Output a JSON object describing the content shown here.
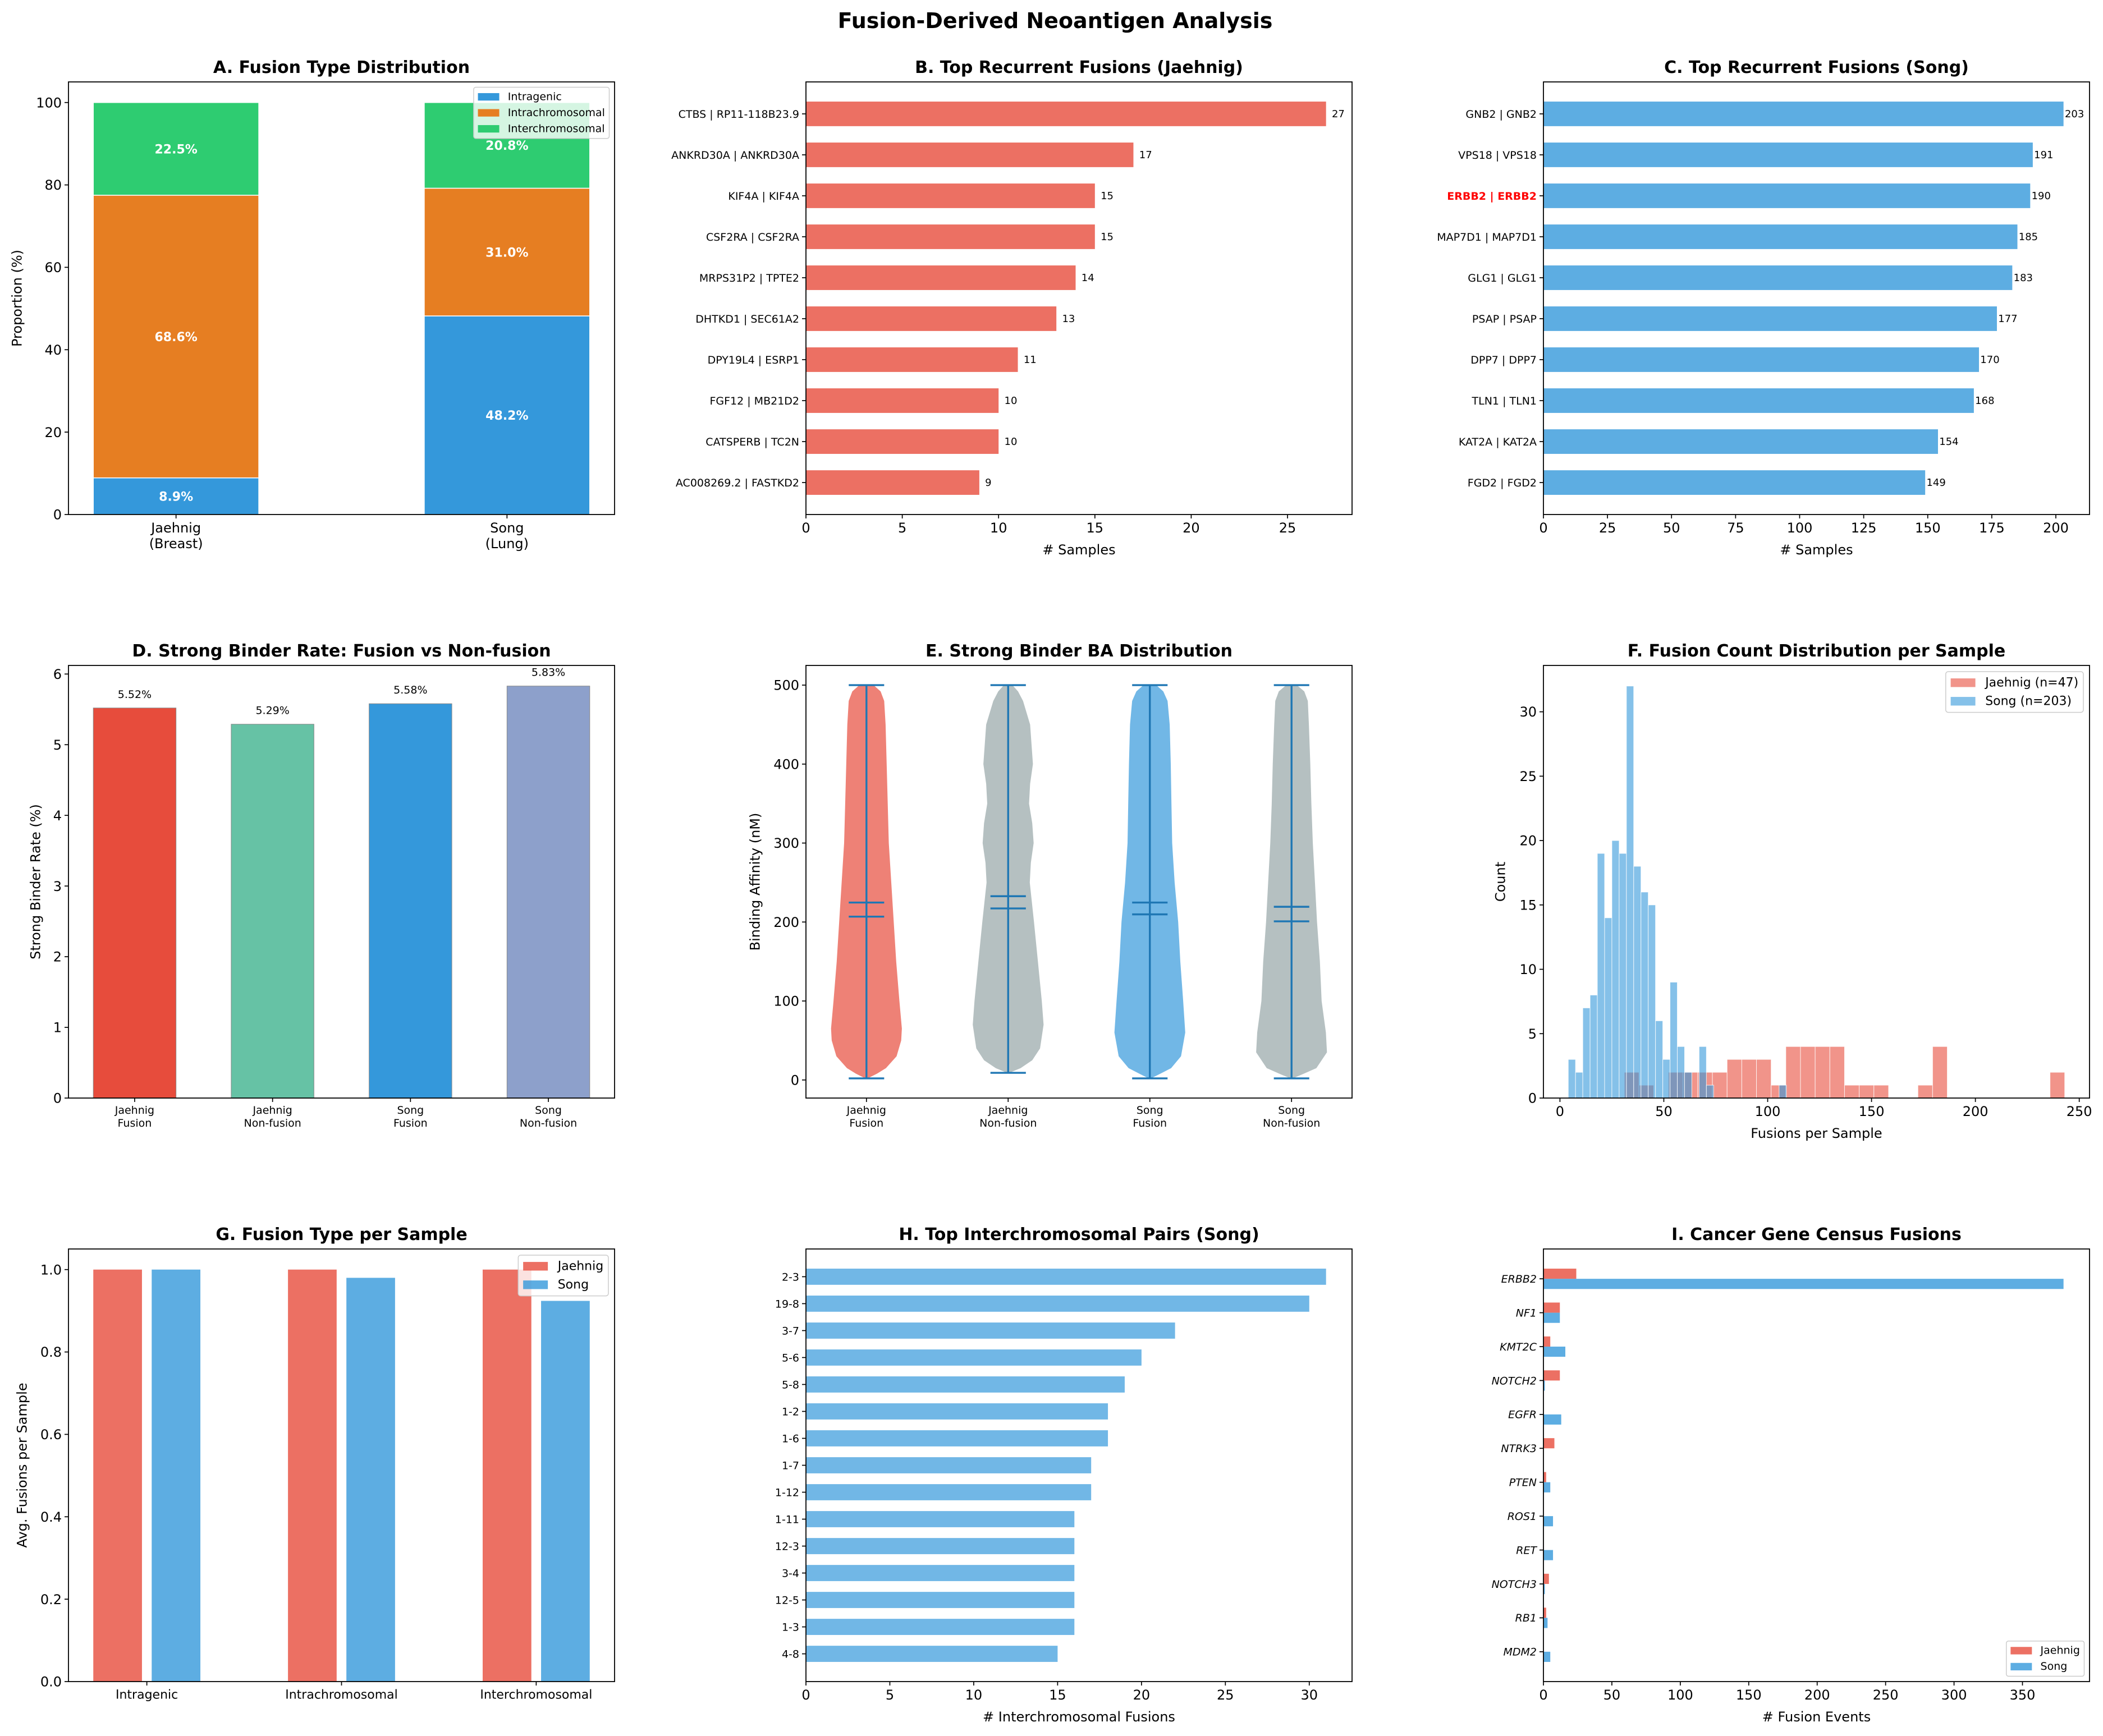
{
  "figure": {
    "title": "Fusion-Derived Neoantigen Analysis"
  },
  "chart_data": [
    {
      "id": "A",
      "type": "bar",
      "stacked": true,
      "title": "A. Fusion Type Distribution",
      "xlabel": "",
      "ylabel": "Proportion (%)",
      "categories": [
        [
          "Jaehnig",
          "(Breast)"
        ],
        [
          "Song",
          "(Lung)"
        ]
      ],
      "series": [
        {
          "name": "Intragenic",
          "color": "#3498db",
          "values": [
            8.9,
            48.2
          ],
          "labels": [
            "8.9%",
            "48.2%"
          ]
        },
        {
          "name": "Intrachromosomal",
          "color": "#e67e22",
          "values": [
            68.6,
            31.0
          ],
          "labels": [
            "68.6%",
            "31.0%"
          ]
        },
        {
          "name": "Interchromosomal",
          "color": "#2ecc71",
          "values": [
            22.5,
            20.8
          ],
          "labels": [
            "22.5%",
            "20.8%"
          ]
        }
      ],
      "ylim": [
        0,
        105
      ],
      "yticks": [
        "0",
        "20",
        "40",
        "60",
        "80",
        "100"
      ],
      "grid": false,
      "legend": "top-right"
    },
    {
      "id": "B",
      "type": "bar",
      "orientation": "horizontal",
      "title": "B. Top Recurrent Fusions (Jaehnig)",
      "xlabel": "# Samples",
      "ylabel": "",
      "categories": [
        "CTBS | RP11-118B23.9",
        "ANKRD30A | ANKRD30A",
        "KIF4A | KIF4A",
        "CSF2RA | CSF2RA",
        "MRPS31P2 | TPTE2",
        "DHTKD1 | SEC61A2",
        "DPY19L4 | ESRP1",
        "FGF12 | MB21D2",
        "CATSPERB | TC2N",
        "AC008269.2 | FASTKD2"
      ],
      "values": [
        27,
        17,
        15,
        15,
        14,
        13,
        11,
        10,
        10,
        9
      ],
      "color": "#e74c3c",
      "alpha": 0.8,
      "xlim": [
        0,
        28.35
      ],
      "ylim": [
        -0.78,
        9.78
      ],
      "xticks": [
        "0",
        "5",
        "10",
        "15",
        "20",
        "25"
      ],
      "grid": false
    },
    {
      "id": "C",
      "type": "bar",
      "orientation": "horizontal",
      "title": "C. Top Recurrent Fusions (Song)",
      "xlabel": "# Samples",
      "ylabel": "",
      "categories": [
        "GNB2 | GNB2",
        "VPS18 | VPS18",
        "ERBB2 | ERBB2",
        "MAP7D1 | MAP7D1",
        "GLG1 | GLG1",
        "PSAP | PSAP",
        "DPP7 | DPP7",
        "TLN1 | TLN1",
        "KAT2A | KAT2A",
        "FGD2 | FGD2"
      ],
      "values": [
        203,
        191,
        190,
        185,
        183,
        177,
        170,
        168,
        154,
        149
      ],
      "color": "#3498db",
      "alpha": 0.8,
      "highlight": {
        "label": "ERBB2 | ERBB2",
        "color": "#ff0000"
      },
      "xlim": [
        0,
        213.15
      ],
      "ylim": [
        -0.78,
        9.78
      ],
      "xticks": [
        "0",
        "25",
        "50",
        "75",
        "100",
        "125",
        "150",
        "175",
        "200"
      ],
      "grid": false
    },
    {
      "id": "D",
      "type": "bar",
      "title": "D. Strong Binder Rate: Fusion vs Non-fusion",
      "xlabel": "",
      "ylabel": "Strong Binder Rate (%)",
      "categories": [
        [
          "Jaehnig",
          "Fusion"
        ],
        [
          "Jaehnig",
          "Non-fusion"
        ],
        [
          "Song",
          "Fusion"
        ],
        [
          "Song",
          "Non-fusion"
        ]
      ],
      "values": [
        5.52,
        5.29,
        5.58,
        5.83
      ],
      "labels": [
        "5.52%",
        "5.29%",
        "5.58%",
        "5.83%"
      ],
      "colors": [
        "#e74c3c",
        "#66c2a5",
        "#3498db",
        "#8da0cb"
      ],
      "ylim": [
        0,
        6.1215
      ],
      "yticks": [
        "0",
        "1",
        "2",
        "3",
        "4",
        "5",
        "6"
      ],
      "grid": false
    },
    {
      "id": "E",
      "type": "violin",
      "title": "E. Strong Binder BA Distribution",
      "xlabel": "",
      "ylabel": "Binding Affinity (nM)",
      "categories": [
        [
          "Jaehnig",
          "Fusion"
        ],
        [
          "Jaehnig",
          "Non-fusion"
        ],
        [
          "Song",
          "Fusion"
        ],
        [
          "Song",
          "Non-fusion"
        ]
      ],
      "colors": [
        "#e74c3c",
        "#95a5a6",
        "#3498db",
        "#95a5a6"
      ],
      "alpha": 0.7,
      "line_color": "#1f77b4",
      "groups": [
        {
          "min": 2,
          "max": 500,
          "mean": 224.7,
          "median": 206.8,
          "density": [
            [
              2,
              0.03
            ],
            [
              8,
              0.3
            ],
            [
              15,
              0.55
            ],
            [
              30,
              0.85
            ],
            [
              50,
              0.98
            ],
            [
              65,
              1.0
            ],
            [
              100,
              0.93
            ],
            [
              150,
              0.84
            ],
            [
              200,
              0.77
            ],
            [
              250,
              0.7
            ],
            [
              300,
              0.63
            ],
            [
              350,
              0.6
            ],
            [
              400,
              0.57
            ],
            [
              450,
              0.54
            ],
            [
              480,
              0.5
            ],
            [
              492,
              0.4
            ],
            [
              500,
              0.2
            ]
          ]
        },
        {
          "min": 9,
          "max": 500,
          "mean": 232.7,
          "median": 217.2,
          "density": [
            [
              9,
              0.03
            ],
            [
              15,
              0.35
            ],
            [
              25,
              0.68
            ],
            [
              40,
              0.9
            ],
            [
              70,
              1.0
            ],
            [
              100,
              0.95
            ],
            [
              150,
              0.84
            ],
            [
              200,
              0.73
            ],
            [
              250,
              0.61
            ],
            [
              275,
              0.64
            ],
            [
              300,
              0.72
            ],
            [
              325,
              0.68
            ],
            [
              350,
              0.59
            ],
            [
              375,
              0.62
            ],
            [
              400,
              0.7
            ],
            [
              450,
              0.62
            ],
            [
              480,
              0.42
            ],
            [
              492,
              0.28
            ],
            [
              500,
              0.12
            ]
          ]
        },
        {
          "min": 2,
          "max": 500,
          "mean": 224.7,
          "median": 209.7,
          "density": [
            [
              2,
              0.03
            ],
            [
              8,
              0.3
            ],
            [
              15,
              0.6
            ],
            [
              30,
              0.88
            ],
            [
              60,
              1.0
            ],
            [
              100,
              0.94
            ],
            [
              150,
              0.86
            ],
            [
              200,
              0.8
            ],
            [
              250,
              0.7
            ],
            [
              300,
              0.63
            ],
            [
              350,
              0.61
            ],
            [
              400,
              0.59
            ],
            [
              450,
              0.56
            ],
            [
              480,
              0.5
            ],
            [
              492,
              0.38
            ],
            [
              500,
              0.18
            ]
          ]
        },
        {
          "min": 2,
          "max": 500,
          "mean": 219.3,
          "median": 200.9,
          "density": [
            [
              2,
              0.03
            ],
            [
              8,
              0.35
            ],
            [
              15,
              0.7
            ],
            [
              35,
              1.0
            ],
            [
              60,
              0.97
            ],
            [
              100,
              0.85
            ],
            [
              150,
              0.8
            ],
            [
              200,
              0.72
            ],
            [
              250,
              0.66
            ],
            [
              300,
              0.6
            ],
            [
              350,
              0.56
            ],
            [
              400,
              0.53
            ],
            [
              450,
              0.49
            ],
            [
              480,
              0.46
            ],
            [
              492,
              0.36
            ],
            [
              500,
              0.15
            ]
          ]
        }
      ],
      "ylim": [
        -22.9,
        524.9
      ],
      "yticks": [
        "0",
        "100",
        "200",
        "300",
        "400",
        "500"
      ],
      "grid": false
    },
    {
      "id": "F",
      "type": "histogram",
      "title": "F. Fusion Count Distribution per Sample",
      "xlabel": "Fusions per Sample",
      "ylabel": "Count",
      "series": [
        {
          "name": "Jaehnig (n=47)",
          "color": "#e74c3c",
          "alpha": 0.6,
          "range": [
            31,
            243
          ],
          "bins": 30,
          "counts": [
            2,
            1,
            0,
            2,
            2,
            2,
            2,
            3,
            3,
            3,
            1,
            4,
            4,
            4,
            4,
            1,
            1,
            1,
            0,
            0,
            1,
            4,
            0,
            0,
            0,
            0,
            0,
            0,
            0,
            2
          ]
        },
        {
          "name": "Song (n=203)",
          "color": "#3498db",
          "alpha": 0.6,
          "range": [
            4,
            109
          ],
          "bins": 30,
          "counts": [
            3,
            2,
            7,
            8,
            19,
            14,
            20,
            19,
            32,
            18,
            16,
            15,
            6,
            3,
            9,
            4,
            2,
            0,
            4,
            1,
            0,
            0,
            0,
            0,
            0,
            0,
            0,
            0,
            0,
            1
          ]
        }
      ],
      "xlim": [
        -7.95,
        254.95
      ],
      "ylim": [
        0,
        33.6
      ],
      "xticks": [
        "0",
        "50",
        "100",
        "150",
        "200",
        "250"
      ],
      "yticks": [
        "0",
        "5",
        "10",
        "15",
        "20",
        "25",
        "30"
      ],
      "grid": false,
      "legend": "top-right"
    },
    {
      "id": "G",
      "type": "bar",
      "grouped": true,
      "title": "G. Fusion Type per Sample",
      "xlabel": "",
      "ylabel": "Avg. Fusions per Sample",
      "categories": [
        "Intragenic",
        "Intrachromosomal",
        "Interchromosomal"
      ],
      "series": [
        {
          "name": "Jaehnig",
          "color": "#e74c3c",
          "alpha": 0.8,
          "values": [
            1.0,
            1.0,
            1.0
          ]
        },
        {
          "name": "Song",
          "color": "#3498db",
          "alpha": 0.8,
          "values": [
            1.0,
            0.98,
            0.924
          ]
        }
      ],
      "ylim": [
        0,
        1.05
      ],
      "yticks": [
        "0.0",
        "0.2",
        "0.4",
        "0.6",
        "0.8",
        "1.0"
      ],
      "grid": false,
      "legend": "top-right"
    },
    {
      "id": "H",
      "type": "bar",
      "orientation": "horizontal",
      "title": "H. Top Interchromosomal Pairs (Song)",
      "xlabel": "# Interchromosomal Fusions",
      "ylabel": "",
      "categories": [
        "2-3",
        "19-8",
        "3-7",
        "5-6",
        "5-8",
        "1-2",
        "1-6",
        "1-7",
        "1-12",
        "1-11",
        "12-3",
        "3-4",
        "12-5",
        "1-3",
        "4-8"
      ],
      "values": [
        31,
        30,
        22,
        20,
        19,
        18,
        18,
        17,
        17,
        16,
        16,
        16,
        16,
        16,
        15
      ],
      "color": "#3498db",
      "alpha": 0.7,
      "xlim": [
        0,
        32.55
      ],
      "ylim": [
        -1.03,
        15.03
      ],
      "xticks": [
        "0",
        "5",
        "10",
        "15",
        "20",
        "25",
        "30"
      ],
      "grid": false
    },
    {
      "id": "I",
      "type": "bar",
      "orientation": "horizontal",
      "grouped": true,
      "title": "I. Cancer Gene Census Fusions",
      "xlabel": "# Fusion Events",
      "ylabel": "",
      "categories": [
        "ERBB2",
        "NF1",
        "KMT2C",
        "NOTCH2",
        "EGFR",
        "NTRK3",
        "PTEN",
        "ROS1",
        "RET",
        "NOTCH3",
        "RB1",
        "MDM2"
      ],
      "series": [
        {
          "name": "Jaehnig",
          "color": "#e74c3c",
          "alpha": 0.8,
          "values": [
            24,
            12,
            5,
            12,
            0,
            8,
            2,
            0,
            0,
            4,
            2,
            0
          ]
        },
        {
          "name": "Song",
          "color": "#3498db",
          "alpha": 0.8,
          "values": [
            380,
            12,
            16,
            1,
            13,
            0,
            5,
            7,
            7,
            1,
            3,
            5
          ]
        }
      ],
      "xlim": [
        0,
        399
      ],
      "ylim": [
        -0.88,
        11.88
      ],
      "xticks": [
        "0",
        "50",
        "100",
        "150",
        "200",
        "250",
        "300",
        "350"
      ],
      "grid": false,
      "legend": "bottom-right"
    }
  ]
}
